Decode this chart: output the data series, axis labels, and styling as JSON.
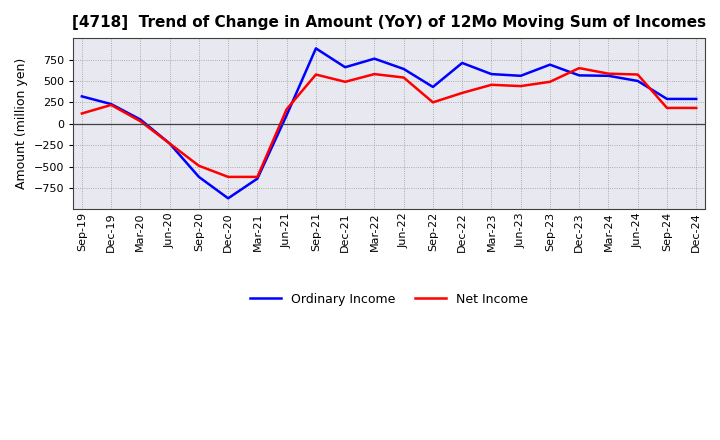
{
  "title": "[4718]  Trend of Change in Amount (YoY) of 12Mo Moving Sum of Incomes",
  "ylabel": "Amount (million yen)",
  "x_labels": [
    "Sep-19",
    "Dec-19",
    "Mar-20",
    "Jun-20",
    "Sep-20",
    "Dec-20",
    "Mar-21",
    "Jun-21",
    "Sep-21",
    "Dec-21",
    "Mar-22",
    "Jun-22",
    "Sep-22",
    "Dec-22",
    "Mar-23",
    "Jun-23",
    "Sep-23",
    "Dec-23",
    "Mar-24",
    "Jun-24",
    "Sep-24",
    "Dec-24"
  ],
  "ordinary_income": [
    320,
    230,
    50,
    -230,
    -620,
    -870,
    -640,
    100,
    880,
    660,
    760,
    640,
    430,
    710,
    580,
    560,
    690,
    565,
    560,
    500,
    290,
    290
  ],
  "net_income": [
    120,
    220,
    30,
    -230,
    -490,
    -620,
    -620,
    170,
    575,
    490,
    580,
    540,
    250,
    360,
    455,
    440,
    490,
    650,
    585,
    575,
    185,
    185
  ],
  "ylim": [
    -1000,
    1000
  ],
  "yticks": [
    -750,
    -500,
    -250,
    0,
    250,
    500,
    750
  ],
  "ordinary_color": "#0000FF",
  "net_color": "#FF0000",
  "background_color": "#FFFFFF",
  "plot_bg_color": "#E8E8F0",
  "grid_color": "#999999",
  "zero_line_color": "#404040",
  "legend_labels": [
    "Ordinary Income",
    "Net Income"
  ],
  "title_fontsize": 11,
  "ylabel_fontsize": 9,
  "tick_fontsize": 8,
  "line_width": 1.8
}
